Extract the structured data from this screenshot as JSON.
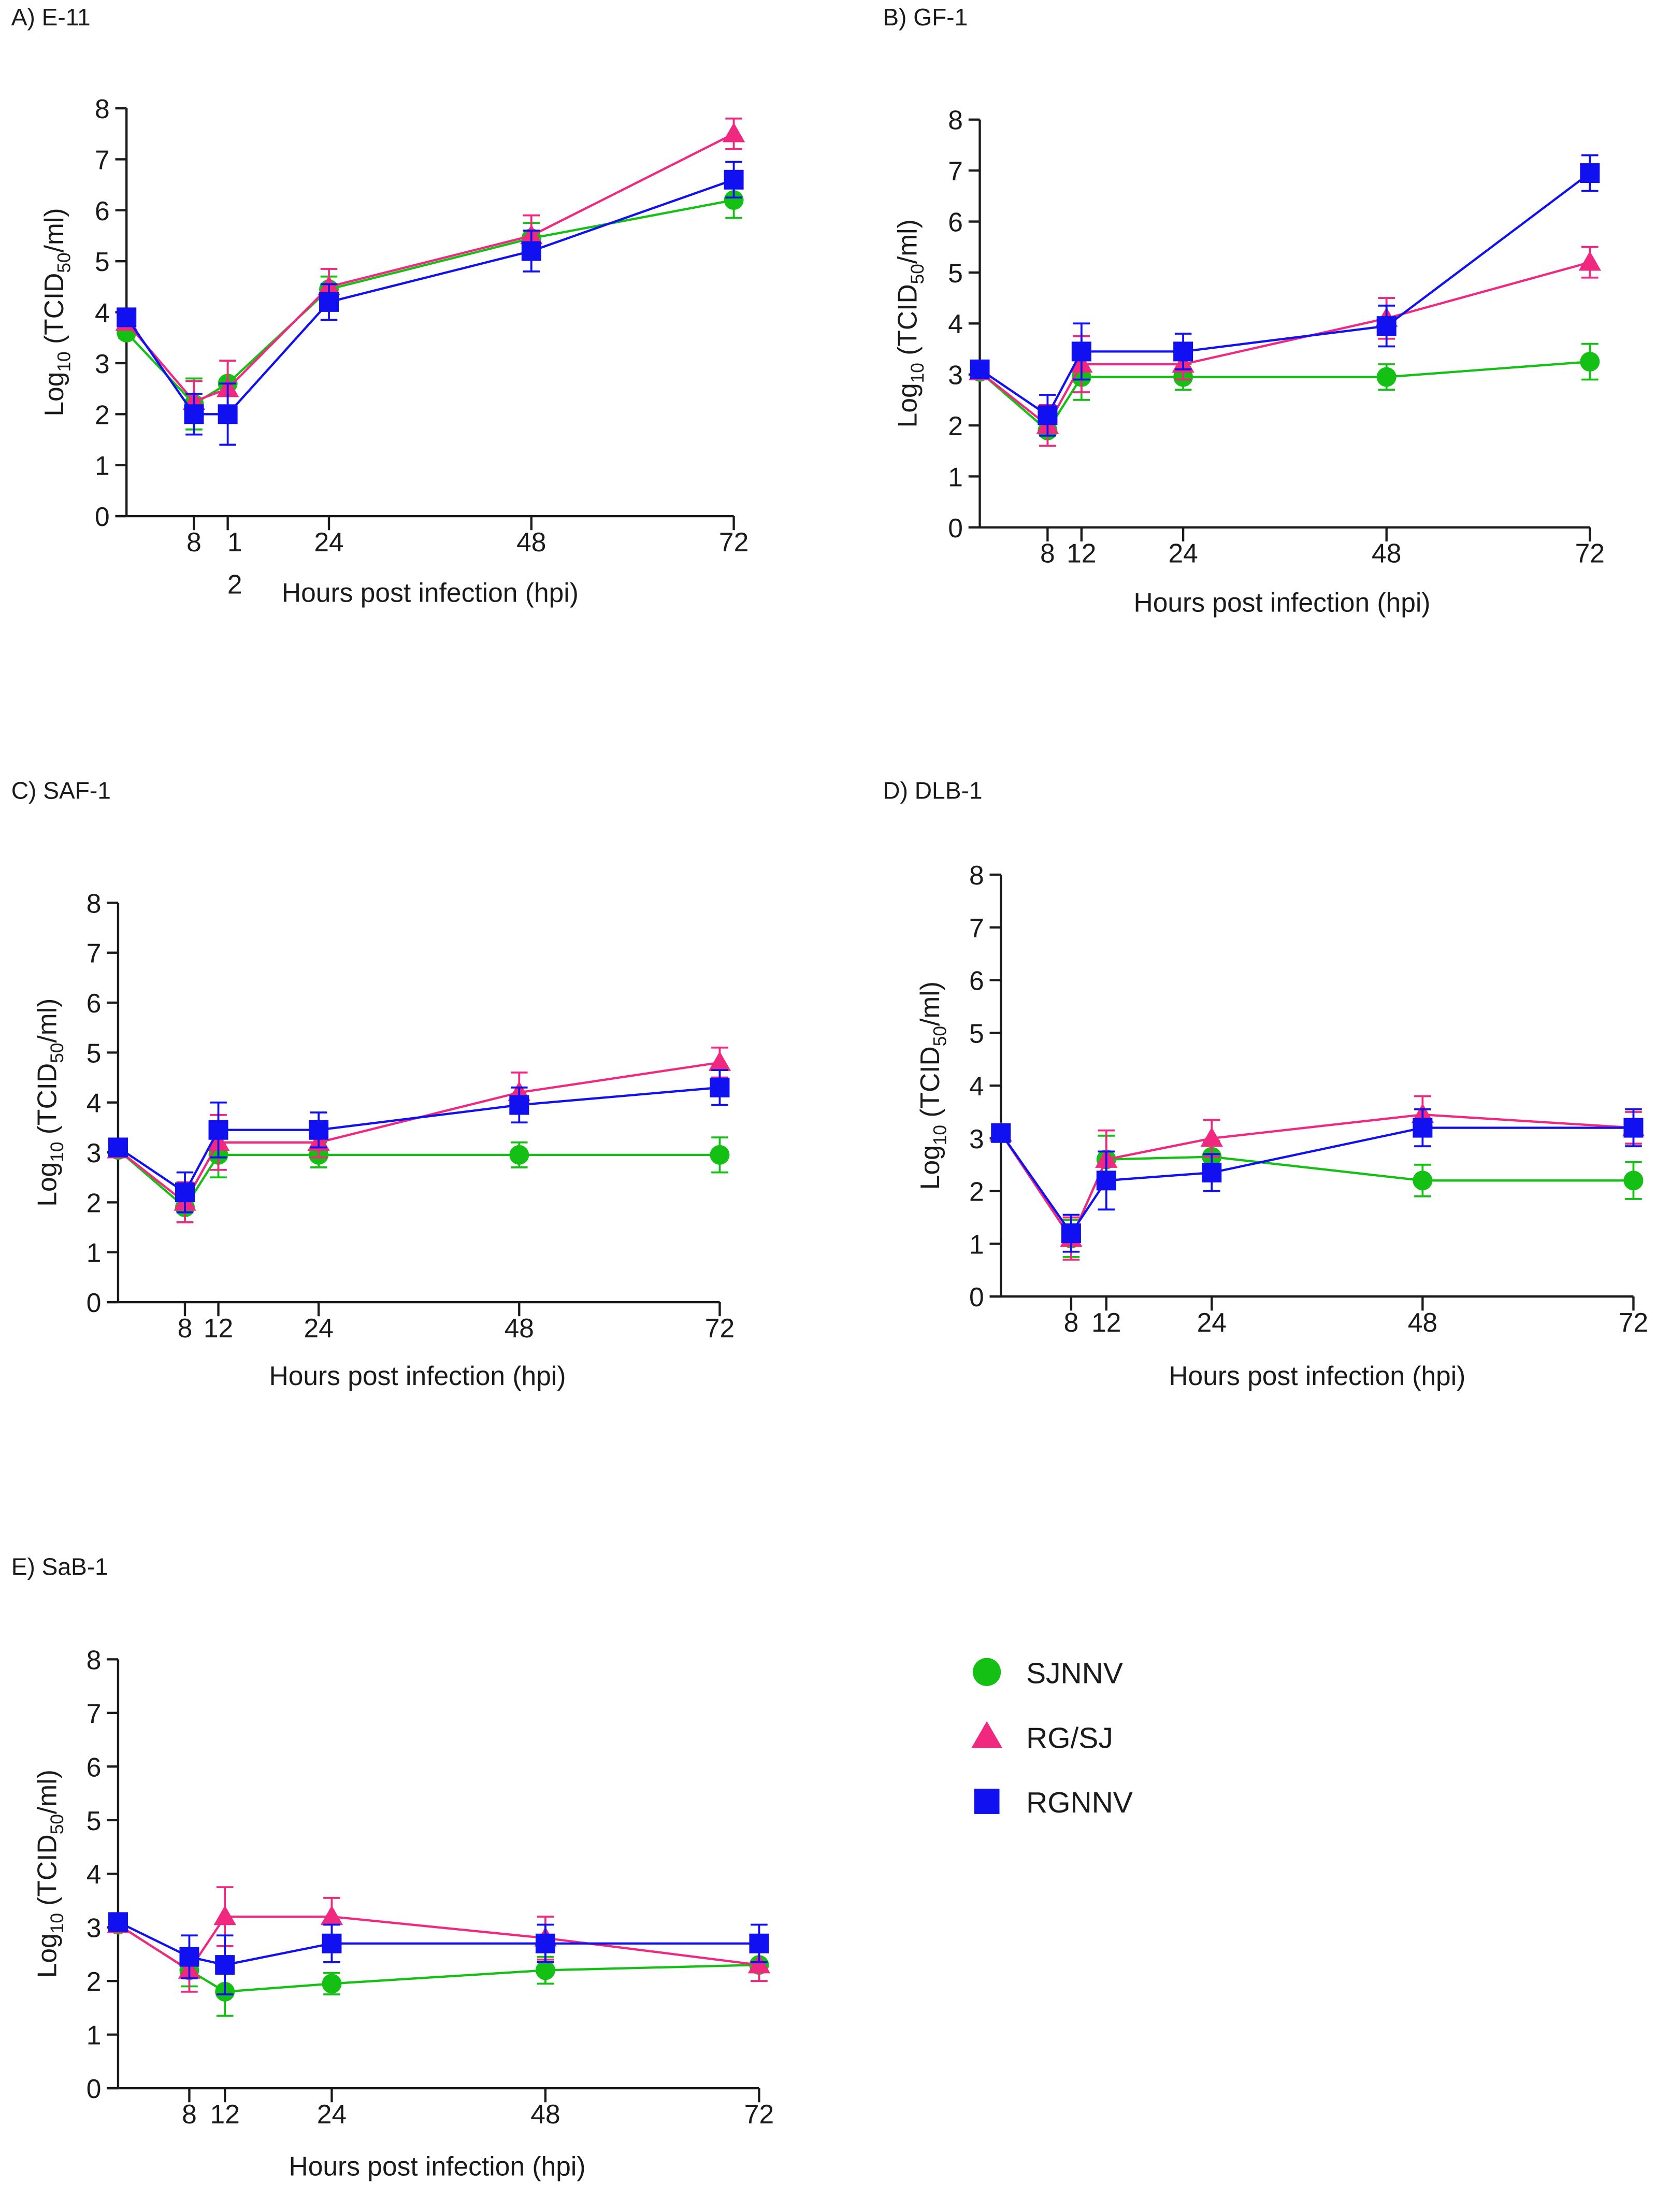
{
  "chart_data": [
    {
      "type": "line",
      "title": "A) E-11",
      "xlabel": "Hours post infection (hpi)",
      "ylabel": {
        "base": "Log",
        "sub1": "10",
        "mid": " (TCID",
        "sub2": "50",
        "end": "/ml)"
      },
      "x": [
        0,
        8,
        12,
        24,
        48,
        72
      ],
      "xticks": [
        "8",
        "12",
        "24",
        "48",
        "72"
      ],
      "xtick_values": [
        8,
        12,
        24,
        48,
        72
      ],
      "yticks": [
        "0",
        "1",
        "2",
        "3",
        "4",
        "5",
        "6",
        "7",
        "8"
      ],
      "ylim": [
        0,
        8
      ],
      "series": [
        {
          "name": "SJNNV",
          "values": [
            3.6,
            2.2,
            2.6,
            4.45,
            5.45,
            6.2
          ],
          "errors": [
            0.1,
            0.5,
            0.45,
            0.25,
            0.3,
            0.35
          ]
        },
        {
          "name": "RG/SJ",
          "values": [
            3.8,
            2.25,
            2.5,
            4.5,
            5.5,
            7.5
          ],
          "errors": [
            0.1,
            0.4,
            0.55,
            0.35,
            0.4,
            0.3
          ]
        },
        {
          "name": "RGNNV",
          "values": [
            3.9,
            2.0,
            2.0,
            4.2,
            5.2,
            6.6
          ],
          "errors": [
            0.1,
            0.4,
            0.6,
            0.35,
            0.4,
            0.35
          ]
        }
      ]
    },
    {
      "type": "line",
      "title": "B) GF-1",
      "xlabel": "Hours post infection (hpi)",
      "ylabel": {
        "base": "Log",
        "sub1": "10",
        "mid": " (TCID",
        "sub2": "50",
        "end": "/ml)"
      },
      "x": [
        0,
        8,
        12,
        24,
        48,
        72
      ],
      "xticks": [
        "8",
        "12",
        "24",
        "48",
        "72"
      ],
      "xtick_values": [
        8,
        12,
        24,
        48,
        72
      ],
      "yticks": [
        "0",
        "1",
        "2",
        "3",
        "4",
        "5",
        "6",
        "7",
        "8"
      ],
      "ylim": [
        0,
        8
      ],
      "series": [
        {
          "name": "SJNNV",
          "values": [
            3.05,
            1.9,
            2.95,
            2.95,
            2.95,
            3.25
          ],
          "errors": [
            0.1,
            0.3,
            0.45,
            0.25,
            0.25,
            0.35
          ]
        },
        {
          "name": "RG/SJ",
          "values": [
            3.05,
            2.0,
            3.2,
            3.2,
            4.1,
            5.2
          ],
          "errors": [
            0.1,
            0.4,
            0.55,
            0.3,
            0.4,
            0.3
          ]
        },
        {
          "name": "RGNNV",
          "values": [
            3.1,
            2.2,
            3.45,
            3.45,
            3.95,
            6.95
          ],
          "errors": [
            0.1,
            0.4,
            0.55,
            0.35,
            0.4,
            0.35
          ]
        }
      ]
    },
    {
      "type": "line",
      "title": "C) SAF-1",
      "xlabel": "Hours post infection (hpi)",
      "ylabel": {
        "base": "Log",
        "sub1": "10",
        "mid": " (TCID",
        "sub2": "50",
        "end": "/ml)"
      },
      "x": [
        0,
        8,
        12,
        24,
        48,
        72
      ],
      "xticks": [
        "8",
        "12",
        "24",
        "48",
        "72"
      ],
      "xtick_values": [
        8,
        12,
        24,
        48,
        72
      ],
      "yticks": [
        "0",
        "1",
        "2",
        "3",
        "4",
        "5",
        "6",
        "7",
        "8"
      ],
      "ylim": [
        0,
        8
      ],
      "series": [
        {
          "name": "SJNNV",
          "values": [
            3.05,
            1.9,
            2.95,
            2.95,
            2.95,
            2.95
          ],
          "errors": [
            0.1,
            0.3,
            0.45,
            0.25,
            0.25,
            0.35
          ]
        },
        {
          "name": "RG/SJ",
          "values": [
            3.05,
            2.0,
            3.2,
            3.2,
            4.2,
            4.8
          ],
          "errors": [
            0.1,
            0.4,
            0.55,
            0.3,
            0.4,
            0.3
          ]
        },
        {
          "name": "RGNNV",
          "values": [
            3.1,
            2.2,
            3.45,
            3.45,
            3.95,
            4.3
          ],
          "errors": [
            0.1,
            0.4,
            0.55,
            0.35,
            0.35,
            0.35
          ]
        }
      ]
    },
    {
      "type": "line",
      "title": "D) DLB-1",
      "xlabel": "Hours post infection (hpi)",
      "ylabel": {
        "base": "Log",
        "sub1": "10",
        "mid": " (TCID",
        "sub2": "50",
        "end": "/ml)"
      },
      "x": [
        0,
        8,
        12,
        24,
        48,
        72
      ],
      "xticks": [
        "8",
        "12",
        "24",
        "48",
        "72"
      ],
      "xtick_values": [
        8,
        12,
        24,
        48,
        72
      ],
      "yticks": [
        "0",
        "1",
        "2",
        "3",
        "4",
        "5",
        "6",
        "7",
        "8"
      ],
      "ylim": [
        0,
        8
      ],
      "series": [
        {
          "name": "SJNNV",
          "values": [
            3.1,
            1.1,
            2.6,
            2.65,
            2.2,
            2.2
          ],
          "errors": [
            0.1,
            0.35,
            0.45,
            0.3,
            0.3,
            0.35
          ]
        },
        {
          "name": "RG/SJ",
          "values": [
            3.1,
            1.1,
            2.6,
            3.0,
            3.45,
            3.2
          ],
          "errors": [
            0.1,
            0.4,
            0.55,
            0.35,
            0.35,
            0.3
          ]
        },
        {
          "name": "RGNNV",
          "values": [
            3.1,
            1.2,
            2.2,
            2.35,
            3.2,
            3.2
          ],
          "errors": [
            0.1,
            0.35,
            0.55,
            0.35,
            0.35,
            0.35
          ]
        }
      ]
    },
    {
      "type": "line",
      "title": "E) SaB-1",
      "xlabel": "Hours post infection (hpi)",
      "ylabel": {
        "base": "Log",
        "sub1": "10",
        "mid": " (TCID",
        "sub2": "50",
        "end": "/ml)"
      },
      "x": [
        0,
        8,
        12,
        24,
        48,
        72
      ],
      "xticks": [
        "8",
        "12",
        "24",
        "48",
        "72"
      ],
      "xtick_values": [
        8,
        12,
        24,
        48,
        72
      ],
      "yticks": [
        "0",
        "1",
        "2",
        "3",
        "4",
        "5",
        "6",
        "7",
        "8"
      ],
      "ylim": [
        0,
        8
      ],
      "series": [
        {
          "name": "SJNNV",
          "values": [
            3.05,
            2.2,
            1.8,
            1.95,
            2.2,
            2.3
          ],
          "errors": [
            0.1,
            0.3,
            0.45,
            0.2,
            0.25,
            0.3
          ]
        },
        {
          "name": "RG/SJ",
          "values": [
            3.05,
            2.2,
            3.2,
            3.2,
            2.8,
            2.3
          ],
          "errors": [
            0.1,
            0.4,
            0.55,
            0.35,
            0.4,
            0.3
          ]
        },
        {
          "name": "RGNNV",
          "values": [
            3.1,
            2.45,
            2.3,
            2.7,
            2.7,
            2.7
          ],
          "errors": [
            0.1,
            0.4,
            0.55,
            0.35,
            0.35,
            0.35
          ]
        }
      ]
    }
  ],
  "legend": {
    "placement": "bottom-right",
    "items": [
      {
        "name": "SJNNV",
        "marker": "circle",
        "color": "#14c014"
      },
      {
        "name": "RG/SJ",
        "marker": "triangle",
        "color": "#f0287f"
      },
      {
        "name": "RGNNV",
        "marker": "square",
        "color": "#1010f0"
      }
    ]
  }
}
